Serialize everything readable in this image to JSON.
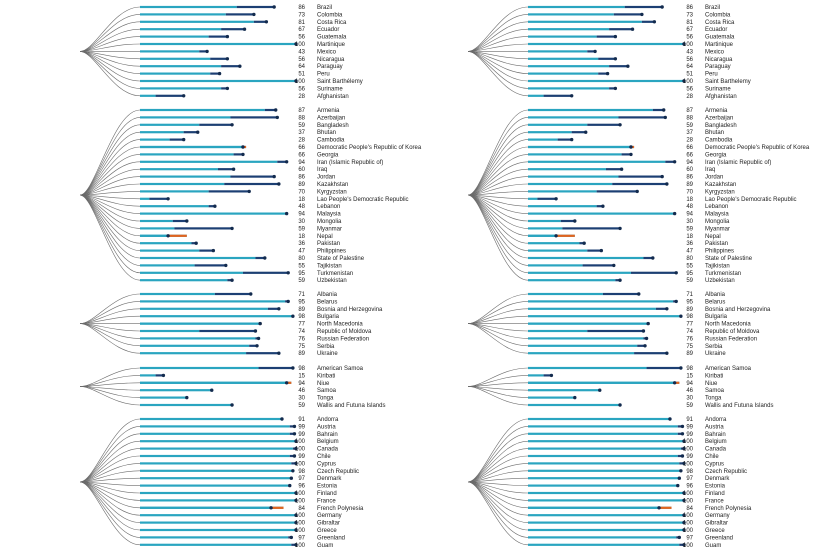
{
  "chart_data": {
    "type": "bar",
    "colors": {
      "bar_light": "#2aa5c0",
      "bar_dark": "#1c3f73",
      "dot": "#132b4e",
      "branch": "#6b6b6b",
      "decline": "#e3641e"
    },
    "panels_note": "",
    "panels": [
      {
        "groups": [
          {
            "rows": [
              {
                "value": 86,
                "country": "Brazil",
                "start": 62
              },
              {
                "value": 73,
                "country": "Colombia",
                "start": 55
              },
              {
                "value": 81,
                "country": "Costa Rica",
                "start": 73
              },
              {
                "value": 67,
                "country": "Ecuador",
                "start": 52
              },
              {
                "value": 56,
                "country": "Guatemala",
                "start": 44
              },
              {
                "value": 100,
                "country": "Martinique",
                "start": 100
              },
              {
                "value": 43,
                "country": "Mexico",
                "start": 38
              },
              {
                "value": 56,
                "country": "Nicaragua",
                "start": 45
              },
              {
                "value": 64,
                "country": "Paraguay",
                "start": 52
              },
              {
                "value": 51,
                "country": "Peru",
                "start": 45
              },
              {
                "value": 100,
                "country": "Saint Barthélemy",
                "start": 100
              },
              {
                "value": 56,
                "country": "Suriname",
                "start": 52
              },
              {
                "value": 28,
                "country": "Afghanistan",
                "start": 10
              }
            ]
          },
          {
            "rows": [
              {
                "value": 87,
                "country": "Armenia",
                "start": 80
              },
              {
                "value": 88,
                "country": "Azerbaijan",
                "start": 58
              },
              {
                "value": 59,
                "country": "Bangladesh",
                "start": 38
              },
              {
                "value": 37,
                "country": "Bhutan",
                "start": 28
              },
              {
                "value": 28,
                "country": "Cambodia",
                "start": 19
              },
              {
                "value": 66,
                "country": "Democratic People's Republic of Korea",
                "start": 68
              },
              {
                "value": 66,
                "country": "Georgia",
                "start": 60
              },
              {
                "value": 94,
                "country": "Iran (Islamic Republic of)",
                "start": 88
              },
              {
                "value": 60,
                "country": "Iraq",
                "start": 50
              },
              {
                "value": 86,
                "country": "Jordan",
                "start": 58
              },
              {
                "value": 89,
                "country": "Kazakhstan",
                "start": 54
              },
              {
                "value": 70,
                "country": "Kyrgyzstan",
                "start": 44
              },
              {
                "value": 18,
                "country": "Lao People's Democratic Republic",
                "start": 6
              },
              {
                "value": 48,
                "country": "Lebanon",
                "start": 44
              },
              {
                "value": 94,
                "country": "Malaysia",
                "start": 94
              },
              {
                "value": 30,
                "country": "Mongolia",
                "start": 21
              },
              {
                "value": 59,
                "country": "Myanmar",
                "start": 22
              },
              {
                "value": 18,
                "country": "Nepal",
                "start": 30
              },
              {
                "value": 36,
                "country": "Pakistan",
                "start": 33
              },
              {
                "value": 47,
                "country": "Philippines",
                "start": 38
              },
              {
                "value": 80,
                "country": "State of Palestine",
                "start": 74
              },
              {
                "value": 55,
                "country": "Tajikistan",
                "start": 35
              },
              {
                "value": 95,
                "country": "Turkmenistan",
                "start": 66
              },
              {
                "value": 59,
                "country": "Uzbekistan",
                "start": 56
              }
            ]
          },
          {
            "rows": [
              {
                "value": 71,
                "country": "Albania",
                "start": 48
              },
              {
                "value": 95,
                "country": "Belarus",
                "start": 93
              },
              {
                "value": 89,
                "country": "Bosnia and Herzegovina",
                "start": 82
              },
              {
                "value": 98,
                "country": "Bulgaria",
                "start": 98
              },
              {
                "value": 77,
                "country": "North Macedonia",
                "start": 78
              },
              {
                "value": 74,
                "country": "Republic of Moldova",
                "start": 38
              },
              {
                "value": 76,
                "country": "Russian Federation",
                "start": 74
              },
              {
                "value": 75,
                "country": "Serbia",
                "start": 70
              },
              {
                "value": 89,
                "country": "Ukraine",
                "start": 68
              }
            ]
          },
          {
            "rows": [
              {
                "value": 98,
                "country": "American Samoa",
                "start": 76
              },
              {
                "value": 15,
                "country": "Kiribati",
                "start": 10
              },
              {
                "value": 94,
                "country": "Niue",
                "start": 97
              },
              {
                "value": 46,
                "country": "Samoa",
                "start": 46
              },
              {
                "value": 30,
                "country": "Tonga",
                "start": 30
              },
              {
                "value": 59,
                "country": "Wallis and Futuna Islands",
                "start": 59
              }
            ]
          },
          {
            "rows": [
              {
                "value": 91,
                "country": "Andorra",
                "start": 91
              },
              {
                "value": 99,
                "country": "Austria",
                "start": 96
              },
              {
                "value": 99,
                "country": "Bahrain",
                "start": 96
              },
              {
                "value": 100,
                "country": "Belgium",
                "start": 100
              },
              {
                "value": 100,
                "country": "Canada",
                "start": 98
              },
              {
                "value": 99,
                "country": "Chile",
                "start": 96
              },
              {
                "value": 100,
                "country": "Cyprus",
                "start": 97
              },
              {
                "value": 98,
                "country": "Czech Republic",
                "start": 98
              },
              {
                "value": 97,
                "country": "Denmark",
                "start": 97
              },
              {
                "value": 96,
                "country": "Estonia",
                "start": 96
              },
              {
                "value": 100,
                "country": "Finland",
                "start": 100
              },
              {
                "value": 100,
                "country": "France",
                "start": 100
              },
              {
                "value": 84,
                "country": "French Polynesia",
                "start": 92
              },
              {
                "value": 100,
                "country": "Germany",
                "start": 100
              },
              {
                "value": 100,
                "country": "Gibraltar",
                "start": 100
              },
              {
                "value": 100,
                "country": "Greece",
                "start": 100
              },
              {
                "value": 97,
                "country": "Greenland",
                "start": 95
              },
              {
                "value": 100,
                "country": "Guam",
                "start": 97
              }
            ]
          }
        ]
      },
      {
        "groups": [
          {
            "rows": [
              {
                "value": 86,
                "country": "Brazil",
                "start": 62
              },
              {
                "value": 73,
                "country": "Colombia",
                "start": 55
              },
              {
                "value": 81,
                "country": "Costa Rica",
                "start": 73
              },
              {
                "value": 67,
                "country": "Ecuador",
                "start": 52
              },
              {
                "value": 56,
                "country": "Guatemala",
                "start": 44
              },
              {
                "value": 100,
                "country": "Martinique",
                "start": 100
              },
              {
                "value": 43,
                "country": "Mexico",
                "start": 38
              },
              {
                "value": 56,
                "country": "Nicaragua",
                "start": 45
              },
              {
                "value": 64,
                "country": "Paraguay",
                "start": 52
              },
              {
                "value": 51,
                "country": "Peru",
                "start": 45
              },
              {
                "value": 100,
                "country": "Saint Barthelemy",
                "start": 100
              },
              {
                "value": 56,
                "country": "Suriname",
                "start": 52
              },
              {
                "value": 28,
                "country": "Afghanistan",
                "start": 10
              }
            ]
          },
          {
            "rows": [
              {
                "value": 87,
                "country": "Armenia",
                "start": 80
              },
              {
                "value": 88,
                "country": "Azerbaijan",
                "start": 58
              },
              {
                "value": 59,
                "country": "Bangladesh",
                "start": 38
              },
              {
                "value": 37,
                "country": "Bhutan",
                "start": 28
              },
              {
                "value": 28,
                "country": "Cambodia",
                "start": 19
              },
              {
                "value": 66,
                "country": "Democratic People's Republic of Korea",
                "start": 68
              },
              {
                "value": 66,
                "country": "Georgia",
                "start": 60
              },
              {
                "value": 94,
                "country": "Iran (Islamic Republic of)",
                "start": 88
              },
              {
                "value": 60,
                "country": "Iraq",
                "start": 50
              },
              {
                "value": 86,
                "country": "Jordan",
                "start": 58
              },
              {
                "value": 89,
                "country": "Kazakhstan",
                "start": 54
              },
              {
                "value": 70,
                "country": "Kyrgyzstan",
                "start": 44
              },
              {
                "value": 18,
                "country": "Lao People's Democratic Republic",
                "start": 6
              },
              {
                "value": 48,
                "country": "Lebanon",
                "start": 44
              },
              {
                "value": 94,
                "country": "Malaysia",
                "start": 94
              },
              {
                "value": 30,
                "country": "Mongolia",
                "start": 21
              },
              {
                "value": 59,
                "country": "Myanmar",
                "start": 22
              },
              {
                "value": 18,
                "country": "Nepal",
                "start": 30
              },
              {
                "value": 36,
                "country": "Pakistan",
                "start": 33
              },
              {
                "value": 47,
                "country": "Philippines",
                "start": 38
              },
              {
                "value": 80,
                "country": "State of Palestine",
                "start": 74
              },
              {
                "value": 55,
                "country": "Tajikistan",
                "start": 35
              },
              {
                "value": 95,
                "country": "Turkmenistan",
                "start": 66
              },
              {
                "value": 59,
                "country": "Uzbekistan",
                "start": 56
              }
            ]
          },
          {
            "rows": [
              {
                "value": 71,
                "country": "Albania",
                "start": 48
              },
              {
                "value": 95,
                "country": "Belarus",
                "start": 93
              },
              {
                "value": 89,
                "country": "Bosnia and Herzegovina",
                "start": 82
              },
              {
                "value": 98,
                "country": "Bulgaria",
                "start": 98
              },
              {
                "value": 77,
                "country": "North Macedonia",
                "start": 78
              },
              {
                "value": 74,
                "country": "Republic of Moldova",
                "start": 38
              },
              {
                "value": 76,
                "country": "Russian Federation",
                "start": 74
              },
              {
                "value": 75,
                "country": "Serbia",
                "start": 70
              },
              {
                "value": 89,
                "country": "Ukraine",
                "start": 68
              }
            ]
          },
          {
            "rows": [
              {
                "value": 98,
                "country": "American Samoa",
                "start": 76
              },
              {
                "value": 15,
                "country": "Kiribati",
                "start": 10
              },
              {
                "value": 94,
                "country": "Niue",
                "start": 97
              },
              {
                "value": 46,
                "country": "Samoa",
                "start": 46
              },
              {
                "value": 30,
                "country": "Tonga",
                "start": 30
              },
              {
                "value": 59,
                "country": "Wallis and Futuna Islands",
                "start": 59
              }
            ]
          },
          {
            "rows": [
              {
                "value": 91,
                "country": "Andorra",
                "start": 91
              },
              {
                "value": 99,
                "country": "Austria",
                "start": 96
              },
              {
                "value": 99,
                "country": "Bahrain",
                "start": 96
              },
              {
                "value": 100,
                "country": "Belgium",
                "start": 100
              },
              {
                "value": 100,
                "country": "Canada",
                "start": 98
              },
              {
                "value": 99,
                "country": "Chile",
                "start": 96
              },
              {
                "value": 100,
                "country": "Cyprus",
                "start": 97
              },
              {
                "value": 98,
                "country": "Czech Republic",
                "start": 98
              },
              {
                "value": 97,
                "country": "Denmark",
                "start": 97
              },
              {
                "value": 96,
                "country": "Estonia",
                "start": 96
              },
              {
                "value": 100,
                "country": "Finland",
                "start": 100
              },
              {
                "value": 100,
                "country": "France",
                "start": 100
              },
              {
                "value": 84,
                "country": "French Polynesia",
                "start": 92
              },
              {
                "value": 100,
                "country": "Germany",
                "start": 100
              },
              {
                "value": 100,
                "country": "Gibraltar",
                "start": 100
              },
              {
                "value": 100,
                "country": "Greece",
                "start": 100
              },
              {
                "value": 97,
                "country": "Greenland",
                "start": 95
              },
              {
                "value": 100,
                "country": "Guam",
                "start": 97
              }
            ]
          }
        ]
      }
    ]
  }
}
